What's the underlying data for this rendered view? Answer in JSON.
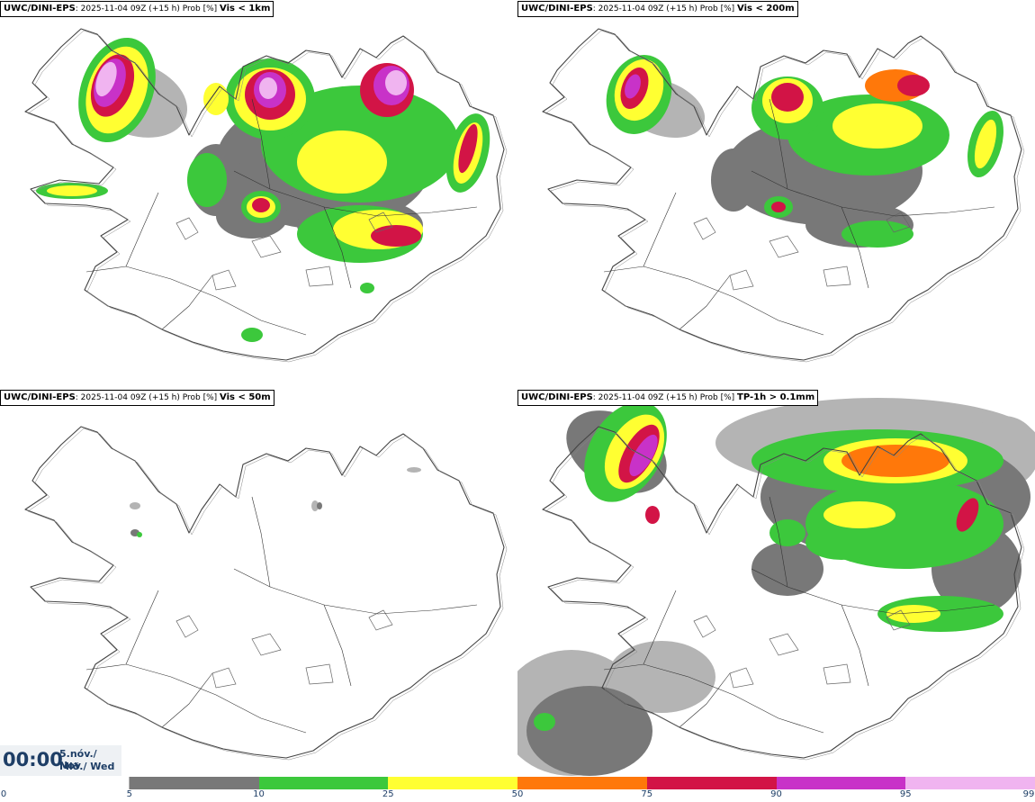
{
  "panels": [
    {
      "model": "UWC/DINI-EPS",
      "info": ": 2025-11-04 09Z (+15 h) Prob [%]",
      "variable": "Vis < 1km"
    },
    {
      "model": "UWC/DINI-EPS",
      "info": ": 2025-11-04 09Z (+15 h) Prob [%]",
      "variable": "Vis < 200m"
    },
    {
      "model": "UWC/DINI-EPS",
      "info": ": 2025-11-04 09Z (+15 h) Prob [%]",
      "variable": "Vis < 50m"
    },
    {
      "model": "UWC/DINI-EPS",
      "info": ": 2025-11-04 09Z (+15 h) Prob [%]",
      "variable": "TP-1h > 0.1mm"
    }
  ],
  "time": {
    "clock": "00:00",
    "date_line1": "5.nóv./ Nov",
    "date_line2": "Mið./ Wed"
  },
  "legend": {
    "ticks": [
      "0",
      "5",
      "10",
      "25",
      "50",
      "75",
      "90",
      "95",
      "99"
    ],
    "colors": [
      "#ffffff",
      "#b4b4b4",
      "#787878",
      "#3cc83c",
      "#ffff32",
      "#ff780a",
      "#d21446",
      "#c832c8",
      "#f0b4f0"
    ]
  }
}
